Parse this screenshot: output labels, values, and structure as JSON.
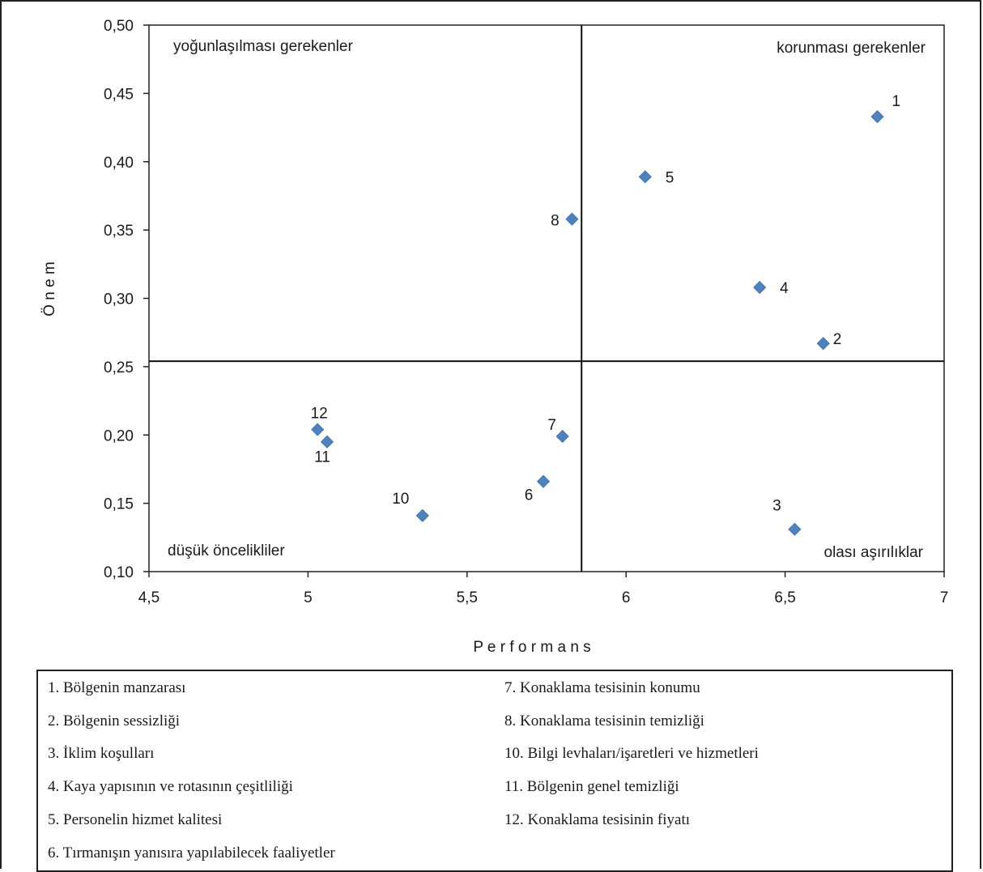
{
  "chart_data": {
    "type": "scatter",
    "xlabel": "P e r f o r m a n s",
    "ylabel": "Ö n e m",
    "xlim": [
      4.5,
      7
    ],
    "ylim": [
      0.1,
      0.5
    ],
    "xticks": [
      "4,5",
      "5",
      "5,5",
      "6",
      "6,5",
      "7"
    ],
    "yticks": [
      "0,10",
      "0,15",
      "0,20",
      "0,25",
      "0,30",
      "0,35",
      "0,40",
      "0,45",
      "0,50"
    ],
    "crosshair": {
      "x": 5.86,
      "y": 0.254
    },
    "marker_color": "#4f81bd",
    "quadrants": {
      "top_left": "yoğunlaşılması gerekenler",
      "top_right": "korunması gerekenler",
      "bottom_left": "düşük öncelikliler",
      "bottom_right": "olası aşırılıklar"
    },
    "points": [
      {
        "label": "1",
        "x": 6.79,
        "y": 0.433
      },
      {
        "label": "2",
        "x": 6.62,
        "y": 0.267
      },
      {
        "label": "3",
        "x": 6.53,
        "y": 0.131
      },
      {
        "label": "4",
        "x": 6.42,
        "y": 0.308
      },
      {
        "label": "5",
        "x": 6.06,
        "y": 0.389
      },
      {
        "label": "6",
        "x": 5.74,
        "y": 0.166
      },
      {
        "label": "7",
        "x": 5.8,
        "y": 0.199
      },
      {
        "label": "8",
        "x": 5.83,
        "y": 0.358
      },
      {
        "label": "10",
        "x": 5.36,
        "y": 0.141
      },
      {
        "label": "11",
        "x": 5.06,
        "y": 0.195
      },
      {
        "label": "12",
        "x": 5.03,
        "y": 0.204
      }
    ]
  },
  "legend": {
    "left": [
      "1. Bölgenin manzarası",
      "2. Bölgenin sessizliği",
      "3. İklim koşulları",
      "4. Kaya yapısının ve rotasının çeşitliliği",
      "5. Personelin hizmet kalitesi",
      "6. Tırmanışın yanısıra yapılabilecek faaliyetler"
    ],
    "right": [
      "7. Konaklama tesisinin konumu",
      "8. Konaklama tesisinin temizliği",
      "10. Bilgi levhaları/işaretleri ve hizmetleri",
      "11. Bölgenin genel temizliği",
      "12. Konaklama tesisinin fiyatı"
    ]
  }
}
